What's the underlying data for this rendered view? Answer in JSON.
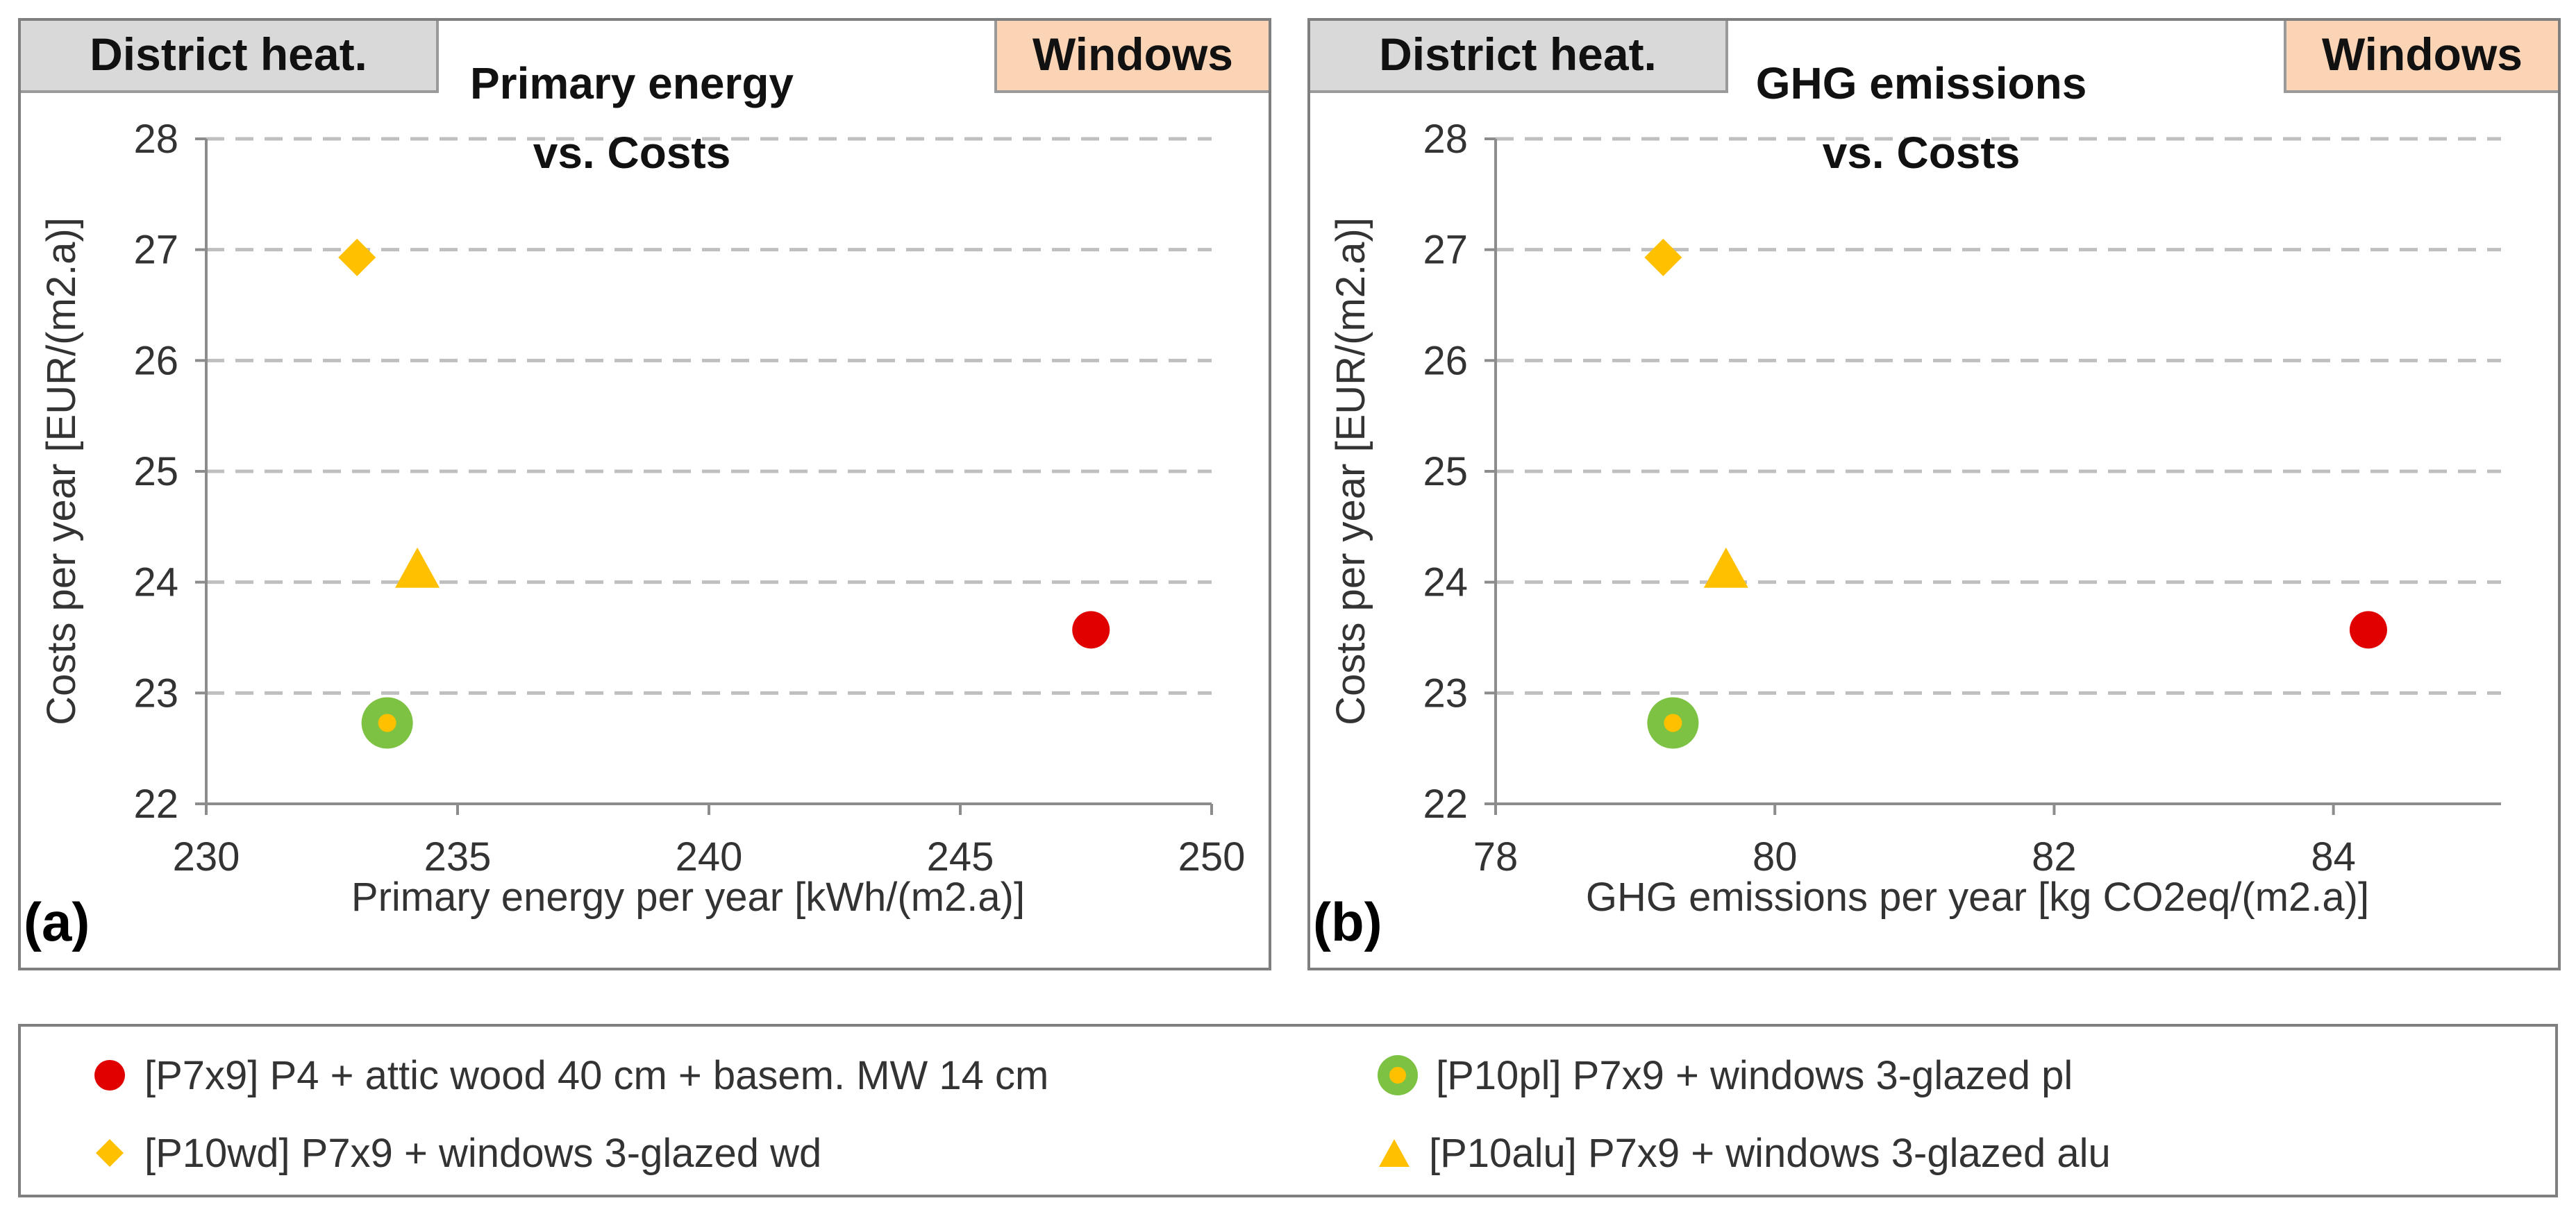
{
  "chart_data": [
    {
      "type": "scatter",
      "panel_label": "(a)",
      "title": [
        "Primary energy",
        "vs. Costs"
      ],
      "tag_left": "District heat.",
      "tag_right": "Windows",
      "xlabel": "Primary energy per year  [kWh/(m2.a)]",
      "ylabel": "Costs per year [EUR/(m2.a)]",
      "xlim": [
        230,
        250
      ],
      "ylim": [
        22,
        28
      ],
      "xticks": [
        230,
        235,
        240,
        245,
        250
      ],
      "yticks": [
        22,
        23,
        24,
        25,
        26,
        27,
        28
      ],
      "grid": "horizontal dashed",
      "series": [
        {
          "name": "[P7x9] P4 + attic wood 40 cm + basem. MW 14 cm",
          "marker": "circle",
          "points": [
            {
              "x": 247.6,
              "y": 23.57
            }
          ]
        },
        {
          "name": "[P10pl] P7x9 + windows 3-glazed  pl",
          "marker": "ring",
          "points": [
            {
              "x": 233.6,
              "y": 22.73
            }
          ]
        },
        {
          "name": "[P10wd] P7x9 + windows 3-glazed  wd",
          "marker": "diamond",
          "points": [
            {
              "x": 233.0,
              "y": 26.93
            }
          ]
        },
        {
          "name": "[P10alu] P7x9 + windows 3-glazed  alu",
          "marker": "triangle",
          "points": [
            {
              "x": 234.2,
              "y": 24.1
            }
          ]
        }
      ]
    },
    {
      "type": "scatter",
      "panel_label": "(b)",
      "title": [
        "GHG emissions",
        "vs. Costs"
      ],
      "tag_left": "District heat.",
      "tag_right": "Windows",
      "xlabel": "GHG emissions per year  [kg CO2eq/(m2.a)]",
      "ylabel": "Costs per year [EUR/(m2.a)]",
      "xlim": [
        78,
        85.2
      ],
      "ylim": [
        22,
        28
      ],
      "xticks": [
        78,
        80,
        82,
        84
      ],
      "yticks": [
        22,
        23,
        24,
        25,
        26,
        27,
        28
      ],
      "grid": "horizontal dashed",
      "series": [
        {
          "name": "[P7x9] P4 + attic wood 40 cm + basem. MW 14 cm",
          "marker": "circle",
          "points": [
            {
              "x": 84.25,
              "y": 23.57
            }
          ]
        },
        {
          "name": "[P10pl] P7x9 + windows 3-glazed  pl",
          "marker": "ring",
          "points": [
            {
              "x": 79.27,
              "y": 22.73
            }
          ]
        },
        {
          "name": "[P10wd] P7x9 + windows 3-glazed  wd",
          "marker": "diamond",
          "points": [
            {
              "x": 79.2,
              "y": 26.93
            }
          ]
        },
        {
          "name": "[P10alu] P7x9 + windows 3-glazed  alu",
          "marker": "triangle",
          "points": [
            {
              "x": 79.65,
              "y": 24.1
            }
          ]
        }
      ]
    }
  ],
  "legend": {
    "items": [
      {
        "marker": "circle",
        "label": "[P7x9] P4 + attic wood 40 cm + basem. MW 14 cm"
      },
      {
        "marker": "ring",
        "label": "[P10pl] P7x9 + windows 3-glazed  pl"
      },
      {
        "marker": "diamond",
        "label": "[P10wd] P7x9 + windows 3-glazed  wd"
      },
      {
        "marker": "triangle",
        "label": "[P10alu] P7x9 + windows 3-glazed  alu"
      }
    ]
  },
  "colors": {
    "red": "#e00000",
    "green": "#7dc242",
    "gold": "#ffc000",
    "grid": "#bfbfbf",
    "axis": "#8c8c8c",
    "tag_gray": "#d9d9d9",
    "tag_peach": "#fbd3b5"
  }
}
